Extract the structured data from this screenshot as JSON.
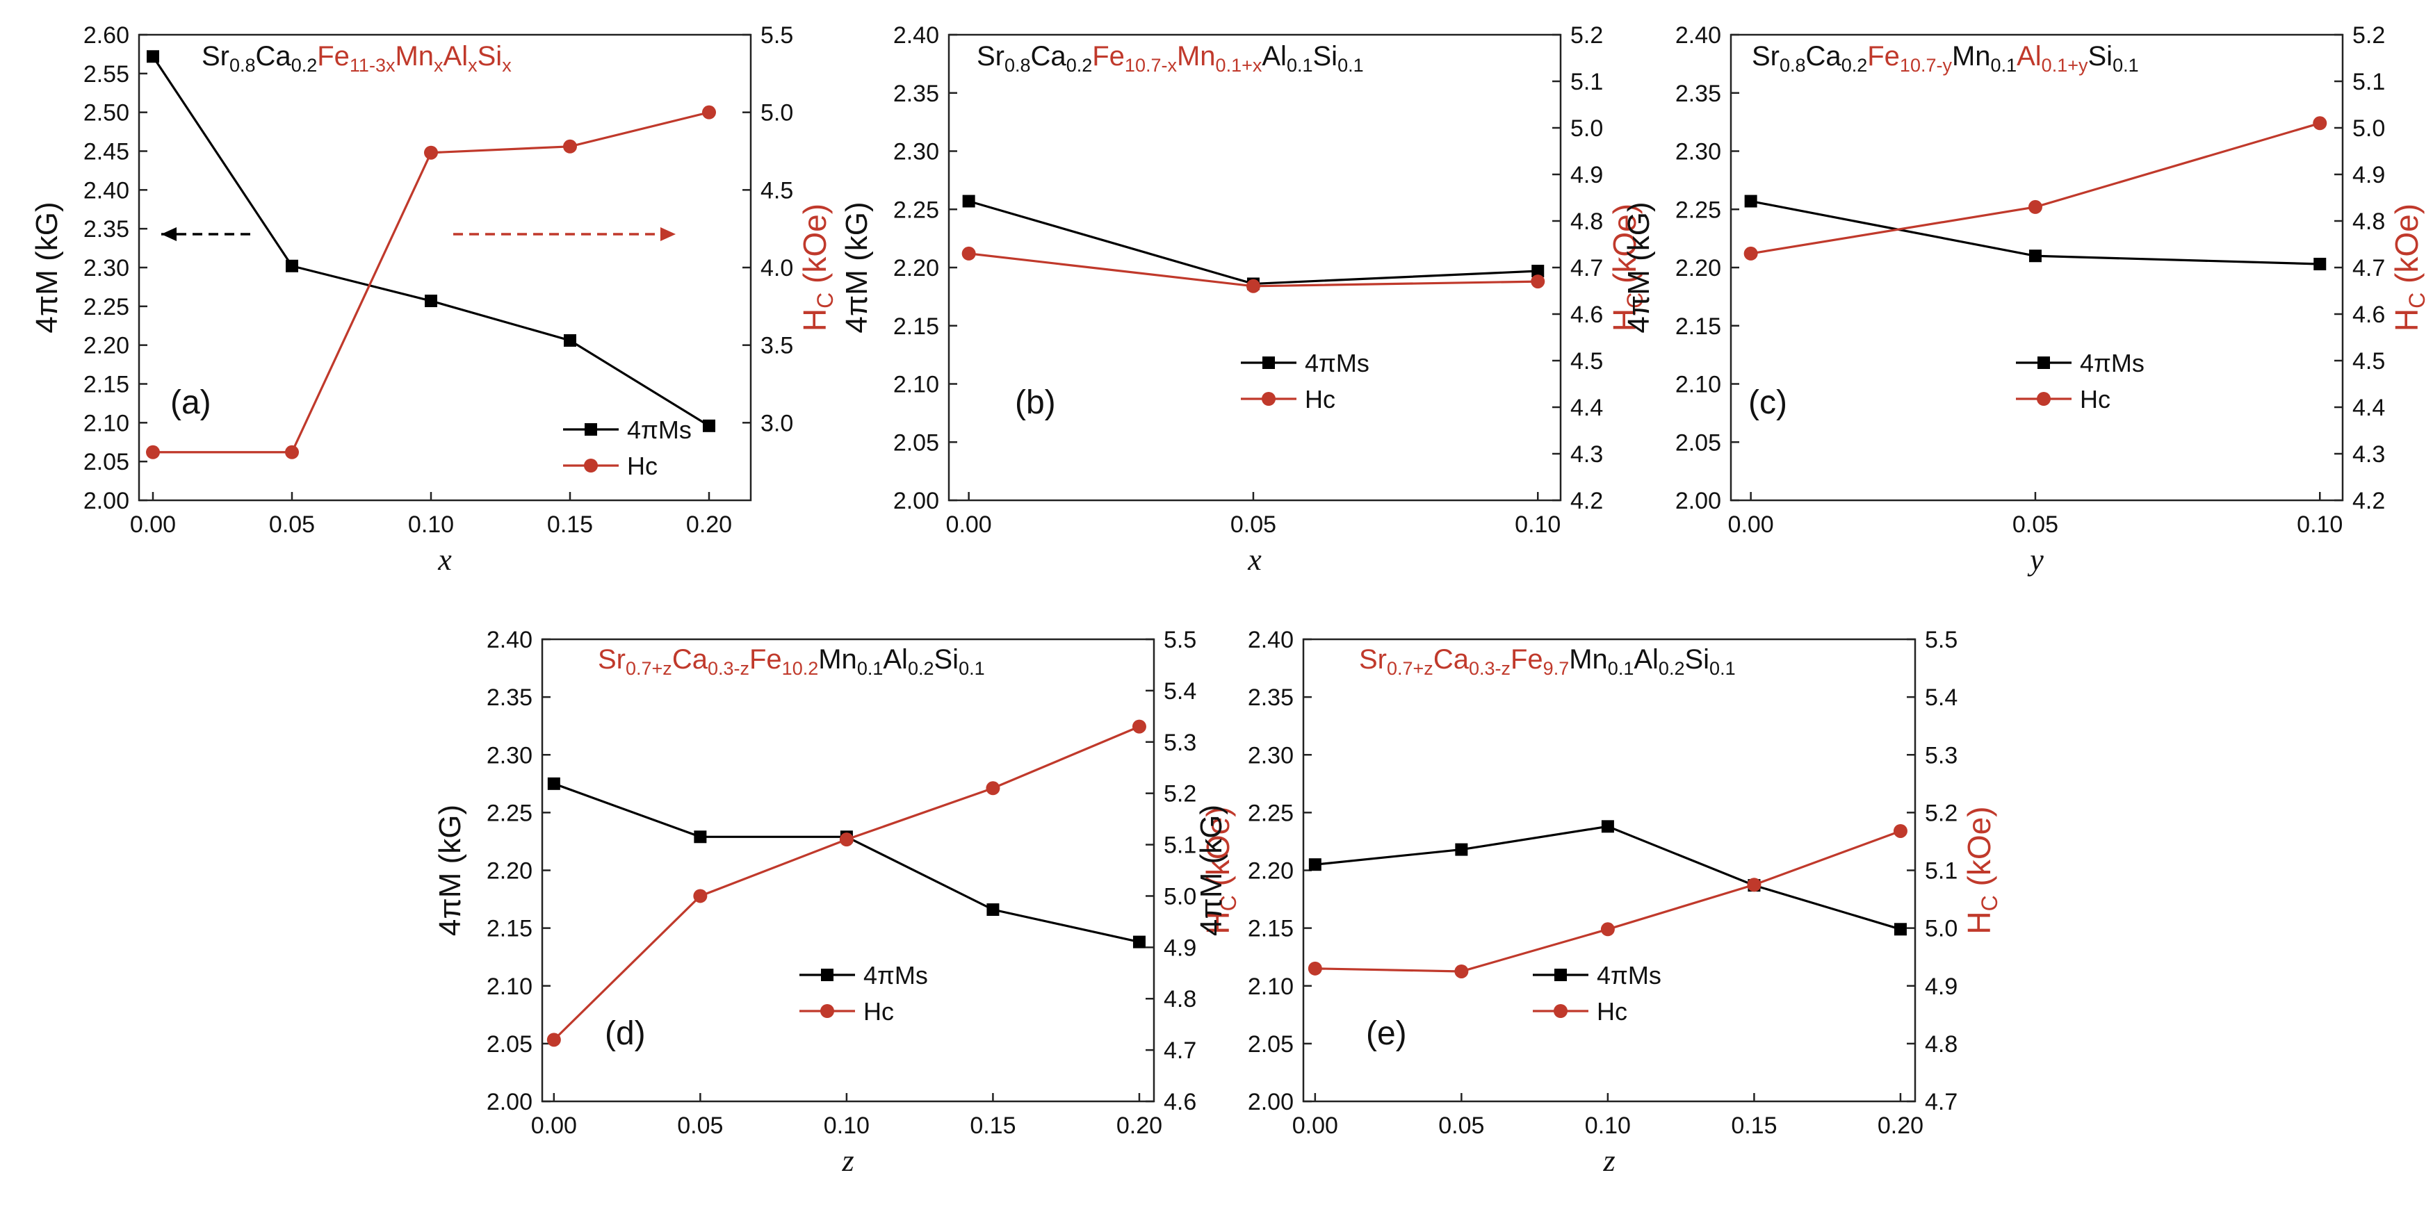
{
  "colors": {
    "black_series": "#000000",
    "red_series": "#c0392b"
  },
  "chart_data": [
    {
      "type": "line",
      "panel_label": "(a)",
      "formula": [
        {
          "t": "Sr",
          "c": "k"
        },
        {
          "t": "0.8",
          "c": "k",
          "sub": true
        },
        {
          "t": "Ca",
          "c": "k"
        },
        {
          "t": "0.2",
          "c": "k",
          "sub": true
        },
        {
          "t": "Fe",
          "c": "r"
        },
        {
          "t": "11-3x",
          "c": "r",
          "sub": true
        },
        {
          "t": "Mn",
          "c": "r"
        },
        {
          "t": "x",
          "c": "r",
          "sub": true
        },
        {
          "t": "Al",
          "c": "r"
        },
        {
          "t": "x",
          "c": "r",
          "sub": true
        },
        {
          "t": "Si",
          "c": "r"
        },
        {
          "t": "x",
          "c": "r",
          "sub": true
        }
      ],
      "xlabel": "x",
      "ylabel_left": "4πM (kG)",
      "ylabel_right": {
        "main": "H",
        "sub": "C",
        "tail": " (kOe)"
      },
      "x": [
        0.0,
        0.05,
        0.1,
        0.15,
        0.2
      ],
      "xticks": [
        "0.00",
        "0.05",
        "0.10",
        "0.15",
        "0.20"
      ],
      "xlim": [
        -0.005,
        0.215
      ],
      "ylim_left": [
        2.0,
        2.6
      ],
      "yticks_left": [
        "2.00",
        "2.05",
        "2.10",
        "2.15",
        "2.20",
        "2.25",
        "2.30",
        "2.35",
        "2.40",
        "2.45",
        "2.50",
        "2.55",
        "2.60"
      ],
      "ylim_right": [
        2.5,
        5.5
      ],
      "yticks_right": [
        "3.0",
        "3.5",
        "4.0",
        "4.5",
        "5.0",
        "5.5"
      ],
      "series": [
        {
          "name": "4πMs",
          "axis": "left",
          "color": "#000000",
          "marker": "square",
          "values": [
            2.572,
            2.302,
            2.257,
            2.206,
            2.096
          ]
        },
        {
          "name": "Hc",
          "axis": "right",
          "color": "#c0392b",
          "marker": "circle",
          "values": [
            2.81,
            2.81,
            4.74,
            4.78,
            5.0
          ]
        }
      ],
      "arrows": [
        {
          "color": "#000000",
          "from": [
            0.035,
            2.343
          ],
          "to": [
            0.003,
            2.343
          ]
        },
        {
          "color": "#c0392b",
          "from": [
            0.108,
            2.343
          ],
          "to": [
            0.188,
            2.343
          ]
        }
      ]
    },
    {
      "type": "line",
      "panel_label": "(b)",
      "formula": [
        {
          "t": "Sr",
          "c": "k"
        },
        {
          "t": "0.8",
          "c": "k",
          "sub": true
        },
        {
          "t": "Ca",
          "c": "k"
        },
        {
          "t": "0.2",
          "c": "k",
          "sub": true
        },
        {
          "t": "Fe",
          "c": "r"
        },
        {
          "t": "10.7-x",
          "c": "r",
          "sub": true
        },
        {
          "t": "Mn",
          "c": "r"
        },
        {
          "t": "0.1+x",
          "c": "r",
          "sub": true
        },
        {
          "t": "Al",
          "c": "k"
        },
        {
          "t": "0.1",
          "c": "k",
          "sub": true
        },
        {
          "t": "Si",
          "c": "k"
        },
        {
          "t": "0.1",
          "c": "k",
          "sub": true
        }
      ],
      "xlabel": "x",
      "ylabel_left": "4πM (kG)",
      "ylabel_right": {
        "main": "H",
        "sub": "C",
        "tail": " (kOe)"
      },
      "x": [
        0.0,
        0.05,
        0.1
      ],
      "xticks": [
        "0.00",
        "0.05",
        "0.10"
      ],
      "xlim": [
        -0.0035,
        0.104
      ],
      "ylim_left": [
        2.0,
        2.4
      ],
      "yticks_left": [
        "2.00",
        "2.05",
        "2.10",
        "2.15",
        "2.20",
        "2.25",
        "2.30",
        "2.35",
        "2.40"
      ],
      "ylim_right": [
        4.2,
        5.2
      ],
      "yticks_right": [
        "4.2",
        "4.3",
        "4.4",
        "4.5",
        "4.6",
        "4.7",
        "4.8",
        "4.9",
        "5.0",
        "5.1",
        "5.2"
      ],
      "series": [
        {
          "name": "4πMs",
          "axis": "left",
          "color": "#000000",
          "marker": "square",
          "values": [
            2.257,
            2.186,
            2.197
          ]
        },
        {
          "name": "Hc",
          "axis": "right",
          "color": "#c0392b",
          "marker": "circle",
          "values": [
            4.73,
            4.66,
            4.67
          ]
        }
      ]
    },
    {
      "type": "line",
      "panel_label": "(c)",
      "formula": [
        {
          "t": "Sr",
          "c": "k"
        },
        {
          "t": "0.8",
          "c": "k",
          "sub": true
        },
        {
          "t": "Ca",
          "c": "k"
        },
        {
          "t": "0.2",
          "c": "k",
          "sub": true
        },
        {
          "t": "Fe",
          "c": "r"
        },
        {
          "t": "10.7-y",
          "c": "r",
          "sub": true
        },
        {
          "t": "Mn",
          "c": "k"
        },
        {
          "t": "0.1",
          "c": "k",
          "sub": true
        },
        {
          "t": "Al",
          "c": "r"
        },
        {
          "t": "0.1+y",
          "c": "r",
          "sub": true
        },
        {
          "t": "Si",
          "c": "k"
        },
        {
          "t": "0.1",
          "c": "k",
          "sub": true
        }
      ],
      "xlabel": "y",
      "ylabel_left": "4πM (kG)",
      "ylabel_right": {
        "main": "H",
        "sub": "C",
        "tail": " (kOe)"
      },
      "x": [
        0.0,
        0.05,
        0.1
      ],
      "xticks": [
        "0.00",
        "0.05",
        "0.10"
      ],
      "xlim": [
        -0.0035,
        0.104
      ],
      "ylim_left": [
        2.0,
        2.4
      ],
      "yticks_left": [
        "2.00",
        "2.05",
        "2.10",
        "2.15",
        "2.20",
        "2.25",
        "2.30",
        "2.35",
        "2.40"
      ],
      "ylim_right": [
        4.2,
        5.2
      ],
      "yticks_right": [
        "4.2",
        "4.3",
        "4.4",
        "4.5",
        "4.6",
        "4.7",
        "4.8",
        "4.9",
        "5.0",
        "5.1",
        "5.2"
      ],
      "series": [
        {
          "name": "4πMs",
          "axis": "left",
          "color": "#000000",
          "marker": "square",
          "values": [
            2.257,
            2.21,
            2.203
          ]
        },
        {
          "name": "Hc",
          "axis": "right",
          "color": "#c0392b",
          "marker": "circle",
          "values": [
            4.73,
            4.83,
            5.01
          ]
        }
      ]
    },
    {
      "type": "line",
      "panel_label": "(d)",
      "formula": [
        {
          "t": "Sr",
          "c": "r"
        },
        {
          "t": "0.7+z",
          "c": "r",
          "sub": true
        },
        {
          "t": "Ca",
          "c": "r"
        },
        {
          "t": "0.3-z",
          "c": "r",
          "sub": true
        },
        {
          "t": "Fe",
          "c": "r"
        },
        {
          "t": "10.2",
          "c": "r",
          "sub": true
        },
        {
          "t": "Mn",
          "c": "k"
        },
        {
          "t": "0.1",
          "c": "k",
          "sub": true
        },
        {
          "t": "Al",
          "c": "k"
        },
        {
          "t": "0.2",
          "c": "k",
          "sub": true
        },
        {
          "t": "Si",
          "c": "k"
        },
        {
          "t": "0.1",
          "c": "k",
          "sub": true
        }
      ],
      "xlabel": "z",
      "ylabel_left": "4πM (kG)",
      "ylabel_right": {
        "main": "H",
        "sub": "C",
        "tail": " (kOe)"
      },
      "x": [
        0.0,
        0.05,
        0.1,
        0.15,
        0.2
      ],
      "xticks": [
        "0.00",
        "0.05",
        "0.10",
        "0.15",
        "0.20"
      ],
      "xlim": [
        -0.004,
        0.205
      ],
      "ylim_left": [
        2.0,
        2.4
      ],
      "yticks_left": [
        "2.00",
        "2.05",
        "2.10",
        "2.15",
        "2.20",
        "2.25",
        "2.30",
        "2.35",
        "2.40"
      ],
      "ylim_right": [
        4.6,
        5.5
      ],
      "yticks_right": [
        "4.6",
        "4.7",
        "4.8",
        "4.9",
        "5.0",
        "5.1",
        "5.2",
        "5.3",
        "5.4",
        "5.5"
      ],
      "series": [
        {
          "name": "4πMs",
          "axis": "left",
          "color": "#000000",
          "marker": "square",
          "values": [
            2.275,
            2.229,
            2.229,
            2.166,
            2.138
          ]
        },
        {
          "name": "Hc",
          "axis": "right",
          "color": "#c0392b",
          "marker": "circle",
          "values": [
            4.72,
            5.0,
            5.11,
            5.21,
            5.33
          ]
        }
      ]
    },
    {
      "type": "line",
      "panel_label": "(e)",
      "formula": [
        {
          "t": "Sr",
          "c": "r"
        },
        {
          "t": "0.7+z",
          "c": "r",
          "sub": true
        },
        {
          "t": "Ca",
          "c": "r"
        },
        {
          "t": "0.3-z",
          "c": "r",
          "sub": true
        },
        {
          "t": "Fe",
          "c": "r"
        },
        {
          "t": "9.7",
          "c": "r",
          "sub": true
        },
        {
          "t": "Mn",
          "c": "k"
        },
        {
          "t": "0.1",
          "c": "k",
          "sub": true
        },
        {
          "t": "Al",
          "c": "k"
        },
        {
          "t": "0.2",
          "c": "k",
          "sub": true
        },
        {
          "t": "Si",
          "c": "k"
        },
        {
          "t": "0.1",
          "c": "k",
          "sub": true
        }
      ],
      "xlabel": "z",
      "ylabel_left": "4πM (kG)",
      "ylabel_right": {
        "main": "H",
        "sub": "C",
        "tail": " (kOe)"
      },
      "x": [
        0.0,
        0.05,
        0.1,
        0.15,
        0.2
      ],
      "xticks": [
        "0.00",
        "0.05",
        "0.10",
        "0.15",
        "0.20"
      ],
      "xlim": [
        -0.004,
        0.205
      ],
      "ylim_left": [
        2.0,
        2.4
      ],
      "yticks_left": [
        "2.00",
        "2.05",
        "2.10",
        "2.15",
        "2.20",
        "2.25",
        "2.30",
        "2.35",
        "2.40"
      ],
      "ylim_right": [
        4.7,
        5.5
      ],
      "yticks_right": [
        "4.7",
        "4.8",
        "4.9",
        "5.0",
        "5.1",
        "5.2",
        "5.3",
        "5.4",
        "5.5"
      ],
      "series": [
        {
          "name": "4πMs",
          "axis": "left",
          "color": "#000000",
          "marker": "square",
          "values": [
            2.205,
            2.218,
            2.238,
            2.187,
            2.149
          ]
        },
        {
          "name": "Hc",
          "axis": "right",
          "color": "#c0392b",
          "marker": "circle",
          "values": [
            4.93,
            4.925,
            4.998,
            5.075,
            5.168
          ]
        }
      ]
    }
  ]
}
